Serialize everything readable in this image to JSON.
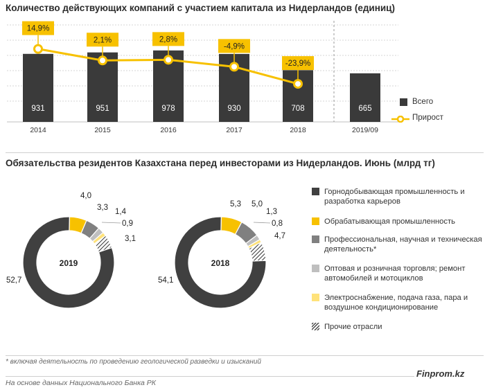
{
  "titles": {
    "top": "Количество действующих компаний с участием капитала из Нидерландов (единиц)",
    "bottom": "Обязательства резидентов Казахстана перед инвесторами из Нидерландов. Июнь (млрд тг)"
  },
  "legend_top": {
    "total": "Всего",
    "growth": "Прирост"
  },
  "legend_bottom": [
    "Горнодобывающая промышленность и разработка карьеров",
    "Обрабатывающая промышленность",
    "Профессиональная, научная и техническая деятельность*",
    "Оптовая и розничная торговля; ремонт автомобилей и мотоциклов",
    "Электроснабжение, подача газа, пара и воздушное кондиционирование",
    "Прочие отрасли"
  ],
  "footnote": "* включая деятельность по проведению геологической разведки и изысканий",
  "source": "На основе данных Национального Банка РК",
  "brand": "Finprom.kz",
  "colors": {
    "bar": "#3a3a3a",
    "growth_line": "#f7c100",
    "mining": "#404040",
    "manufacturing": "#f7c100",
    "professional": "#808080",
    "trade": "#bfbfbf",
    "energy": "#ffe27a",
    "other": "hatch"
  },
  "chart_data": [
    {
      "type": "bar",
      "title": "Количество действующих компаний с участием капитала из Нидерландов (единиц)",
      "categories": [
        "2014",
        "2015",
        "2016",
        "2017",
        "2018",
        "2019/09"
      ],
      "series": [
        {
          "name": "Всего",
          "type": "bar",
          "values": [
            931,
            951,
            978,
            930,
            708,
            665
          ]
        },
        {
          "name": "Прирост",
          "type": "line",
          "values": [
            14.9,
            2.1,
            2.8,
            -4.9,
            -23.9,
            null
          ],
          "labels": [
            "14,9%",
            "2,1%",
            "2,8%",
            "-4,9%",
            "-23,9%",
            ""
          ]
        }
      ],
      "legend": "right"
    },
    {
      "type": "pie",
      "center_label": "2019",
      "labels": [
        "Горнодобывающая промышленность и разработка карьеров",
        "Обрабатывающая промышленность",
        "Профессиональная, научная и техническая деятельность*",
        "Оптовая и розничная торговля; ремонт автомобилей и мотоциклов",
        "Электроснабжение, подача газа, пара и воздушное кондиционирование",
        "Прочие отрасли"
      ],
      "values": [
        52.7,
        4.0,
        3.3,
        1.4,
        0.9,
        3.1
      ],
      "value_labels": [
        "52,7",
        "4,0",
        "3,3",
        "1,4",
        "0,9",
        "3,1"
      ]
    },
    {
      "type": "pie",
      "center_label": "2018",
      "labels": [
        "Горнодобывающая промышленность и разработка карьеров",
        "Обрабатывающая промышленность",
        "Профессиональная, научная и техническая деятельность*",
        "Оптовая и розничная торговля; ремонт автомобилей и мотоциклов",
        "Электроснабжение, подача газа, пара и воздушное кондиционирование",
        "Прочие отрасли"
      ],
      "values": [
        54.1,
        5.3,
        5.0,
        1.3,
        0.8,
        4.7
      ],
      "value_labels": [
        "54,1",
        "5,3",
        "5,0",
        "1,3",
        "0,8",
        "4,7"
      ]
    }
  ]
}
